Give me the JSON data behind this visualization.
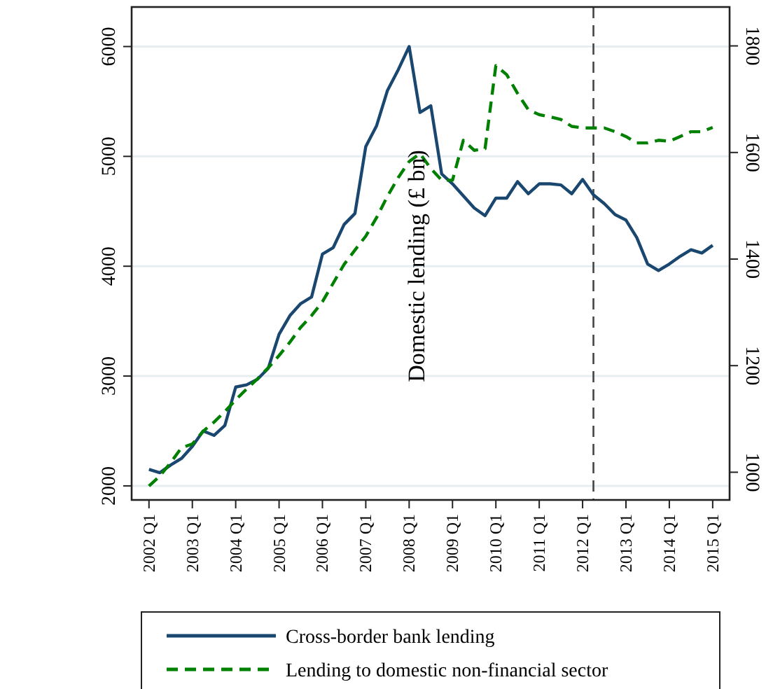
{
  "chart_data": {
    "type": "line",
    "annotations": [
      "Domestic lending (£ bn)"
    ],
    "categories": [
      "2002 Q1",
      null,
      null,
      null,
      "2003 Q1",
      null,
      null,
      null,
      "2004 Q1",
      null,
      null,
      null,
      "2005 Q1",
      null,
      null,
      null,
      "2006 Q1",
      null,
      null,
      null,
      "2007 Q1",
      null,
      null,
      null,
      "2008 Q1",
      null,
      null,
      null,
      "2009 Q1",
      null,
      null,
      null,
      "2010 Q1",
      null,
      null,
      null,
      "2011 Q1",
      null,
      null,
      null,
      "2012 Q1",
      null,
      null,
      null,
      "2013 Q1",
      null,
      null,
      null,
      "2014 Q1",
      null,
      null,
      null,
      "2015 Q1"
    ],
    "series": [
      {
        "name": "Cross-border bank lending",
        "color": "#1a476f",
        "line_style": "solid",
        "values": [
          2150,
          2120,
          2190,
          2250,
          2360,
          2500,
          2460,
          2550,
          2900,
          2920,
          2970,
          3070,
          3380,
          3550,
          3660,
          3720,
          4110,
          4170,
          4380,
          4480,
          5090,
          5280,
          5600,
          5790,
          6000,
          5400,
          5460,
          4840,
          4750,
          4640,
          4530,
          4460,
          4620,
          4620,
          4770,
          4660,
          4750,
          4750,
          4740,
          4660,
          4790,
          4650,
          4570,
          4470,
          4420,
          4260,
          4020,
          3960,
          4020,
          4090,
          4150,
          4120,
          4190
        ]
      },
      {
        "name": "Lending to domestic non-financial sector",
        "color": "#008000",
        "line_style": "dashed",
        "axis": "y2",
        "values": [
          974,
          993,
          1018,
          1046,
          1053,
          1077,
          1094,
          1114,
          1136,
          1156,
          1175,
          1196,
          1219,
          1244,
          1272,
          1294,
          1320,
          1355,
          1390,
          1417,
          1443,
          1478,
          1518,
          1553,
          1583,
          1598,
          1570,
          1548,
          1548,
          1623,
          1604,
          1607,
          1763,
          1746,
          1711,
          1680,
          1671,
          1667,
          1662,
          1649,
          1646,
          1646,
          1646,
          1639,
          1630,
          1618,
          1618,
          1623,
          1621,
          1630,
          1639,
          1639,
          1647
        ]
      }
    ],
    "ylim": [
      1872,
      6360
    ],
    "yticks": [
      2000,
      3000,
      4000,
      5000,
      6000
    ],
    "y2lim": [
      948,
      1873
    ],
    "y2ticks": [
      1000,
      1200,
      1400,
      1600,
      1800
    ],
    "grid": "y",
    "legend": "bottom",
    "marker": "none"
  }
}
